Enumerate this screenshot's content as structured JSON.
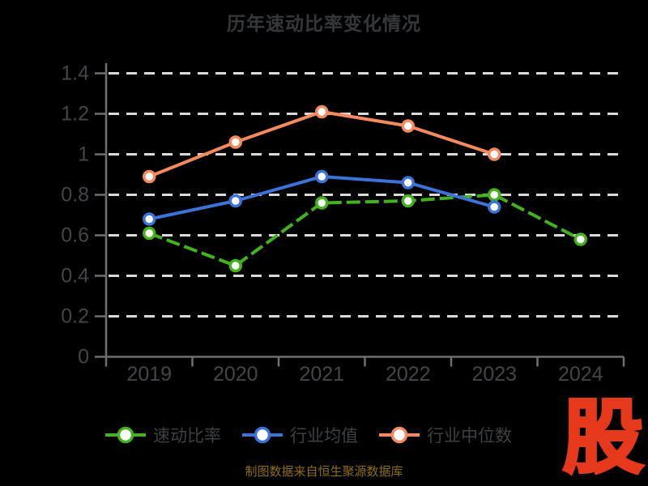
{
  "title": "历年速动比率变化情况",
  "footer": {
    "source_note": "制图数据来自恒生聚源数据库",
    "logo_text": "股"
  },
  "colors": {
    "background": "#000000",
    "title": "#34383b",
    "axis": "#6f6f6f",
    "tick_label": "#434548",
    "gridline": "#dadada",
    "legend_label": "#3d4043",
    "source_note": "#8f6e14",
    "logo": "#e6381a",
    "marker_fill": "#ffffff"
  },
  "chart_data": {
    "type": "line",
    "title": "历年速动比率变化情况",
    "categories": [
      "2019",
      "2020",
      "2021",
      "2022",
      "2023",
      "2024"
    ],
    "series": [
      {
        "name": "速动比率",
        "color": "#43b21c",
        "style": "dashed",
        "values": [
          0.61,
          0.45,
          0.76,
          0.77,
          0.8,
          0.58
        ]
      },
      {
        "name": "行业均值",
        "color": "#3d72d9",
        "style": "solid",
        "values": [
          0.68,
          0.77,
          0.89,
          0.86,
          0.74,
          null
        ]
      },
      {
        "name": "行业中位数",
        "color": "#f58a5e",
        "style": "solid",
        "values": [
          0.89,
          1.06,
          1.21,
          1.14,
          1.0,
          null
        ]
      }
    ],
    "ylim": [
      0,
      1.4
    ],
    "ytick_step": 0.2,
    "yticks": [
      "0",
      "0.2",
      "0.4",
      "0.6",
      "0.8",
      "1",
      "1.2",
      "1.4"
    ],
    "grid": "horizontal-dashed",
    "legend_position": "bottom",
    "marker": "circle-white-fill"
  }
}
